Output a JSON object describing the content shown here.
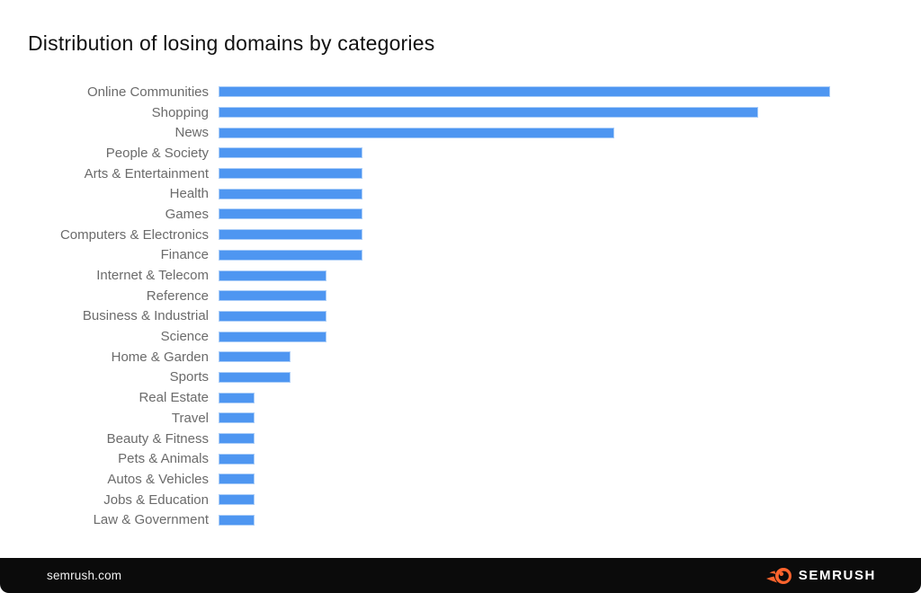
{
  "title": "Distribution of losing domains by categories",
  "chart_data": {
    "type": "bar",
    "orientation": "horizontal",
    "title": "Distribution of losing domains by categories",
    "categories": [
      "Online Communities",
      "Shopping",
      "News",
      "People & Society",
      "Arts & Entertainment",
      "Health",
      "Games",
      "Computers & Electronics",
      "Finance",
      "Internet & Telecom",
      "Reference",
      "Business & Industrial",
      "Science",
      "Home & Garden",
      "Sports",
      "Real Estate",
      "Travel",
      "Beauty & Fitness",
      "Pets & Animals",
      "Autos & Vehicles",
      "Jobs & Education",
      "Law & Government"
    ],
    "values": [
      17,
      15,
      11,
      4,
      4,
      4,
      4,
      4,
      4,
      3,
      3,
      3,
      3,
      2,
      2,
      1,
      1,
      1,
      1,
      1,
      1,
      1
    ],
    "values_note": "relative units estimated from bar lengths; no value axis or data labels are shown in the image",
    "xlabel": "",
    "ylabel": "",
    "xlim": [
      0,
      18
    ],
    "grid": false,
    "legend": false,
    "value_axis_visible": false,
    "bar_color": "#4e96f1",
    "bar_border_color": "#aacdf8",
    "category_label_color": "#6b6b6b"
  },
  "footer": {
    "site_label": "semrush.com",
    "brand_name": "SEMRUSH",
    "brand_color": "#ff642d",
    "background": "#0b0b0b"
  }
}
